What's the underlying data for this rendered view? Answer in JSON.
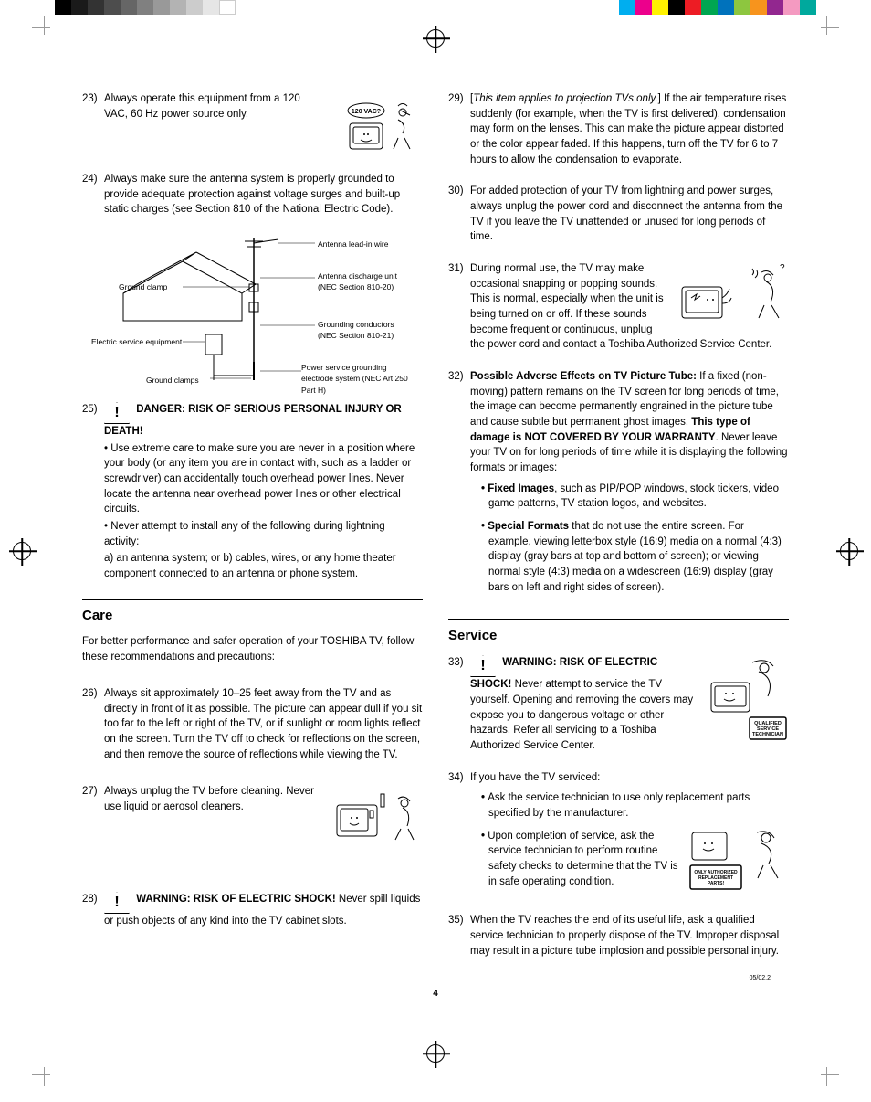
{
  "color_bar": {
    "left_segments": [
      "#000000",
      "#1a1a1a",
      "#333333",
      "#4d4d4d",
      "#666666",
      "#808080",
      "#999999",
      "#b3b3b3",
      "#cccccc",
      "#e6e6e6",
      "#ffffff"
    ],
    "right_segments": [
      "#00aeef",
      "#ec008c",
      "#fff200",
      "#000000",
      "#ed1c24",
      "#00a651",
      "#0072bc",
      "#8dc63f",
      "#f7941d",
      "#92278f",
      "#f49ac1",
      "#00a99d"
    ]
  },
  "page_number": "4",
  "revision": "05/02.2",
  "items": {
    "i23": {
      "num": "23)",
      "text": "Always operate this equipment from a 120 VAC, 60 Hz power source only.",
      "img_label": "120 VAC?"
    },
    "i24": {
      "num": "24)",
      "text": "Always make sure the antenna system is properly grounded to provide adequate protection against voltage surges and built-up static charges (see Section 810 of the National Electric Code).",
      "labels": {
        "ground_clamp": "Ground clamp",
        "electric_service": "Electric service equipment",
        "ground_clamps": "Ground clamps",
        "antenna_lead": "Antenna lead-in wire",
        "discharge": "Antenna discharge unit (NEC Section 810-20)",
        "conductors": "Grounding conductors (NEC Section 810-21)",
        "power_ground": "Power service grounding electrode system (NEC Art 250 Part H)"
      }
    },
    "i25": {
      "num": "25)",
      "heading": "DANGER: RISK OF SERIOUS PERSONAL INJURY OR DEATH!",
      "p1": "• Use extreme care to make sure you are never in a position where your body (or any item you are in contact with, such as a ladder or screwdriver) can accidentally touch overhead power lines. Never locate the antenna near overhead power lines or other electrical circuits.",
      "p2": "• Never attempt to install any of the following during lightning activity:",
      "p3": "a) an antenna system; or b) cables, wires, or any home theater component connected to an antenna or phone system."
    },
    "care": {
      "title": "Care",
      "sub": "For better performance and safer operation of your TOSHIBA TV, follow these recommendations and precautions:"
    },
    "i26": {
      "num": "26)",
      "text": "Always sit approximately 10–25 feet away from the TV and as directly in front of it as possible. The picture can appear dull if you sit too far to the left or right of the TV, or if sunlight or room lights reflect on the screen. Turn the TV off to check for reflections on the screen, and then remove the source of reflections while viewing the TV."
    },
    "i27": {
      "num": "27)",
      "text": "Always unplug the TV before cleaning. Never use liquid or aerosol cleaners."
    },
    "i28": {
      "num": "28)",
      "heading": "WARNING: RISK OF ELECTRIC SHOCK!",
      "text": " Never spill liquids or push objects of any kind into the TV cabinet slots."
    },
    "i29": {
      "num": "29)",
      "lead": "[",
      "italic": "This item applies to projection TVs only.",
      "close": "] ",
      "text": "If the air temperature rises suddenly (for example, when the TV is first delivered), condensation may form on the lenses. This can make the picture appear distorted or the color appear faded. If this happens, turn off the TV for 6 to 7 hours to allow the condensation to evaporate."
    },
    "i30": {
      "num": "30)",
      "text": "For added protection of your TV from lightning and power surges, always unplug the power cord and disconnect the antenna from the TV if you leave the TV unattended or unused for long periods of time."
    },
    "i31": {
      "num": "31)",
      "text": "During normal use, the TV may make occasional snapping or popping sounds. This is normal, especially when the unit is being turned on or off. If these sounds become frequent or continuous, unplug the power cord and contact a Toshiba Authorized Service Center."
    },
    "i32": {
      "num": "32)",
      "heading": "Possible Adverse Effects on TV Picture Tube:",
      "text": " If a fixed (non-moving) pattern remains on the TV screen for long periods of time, the image can become permanently engrained in the picture tube and cause subtle but permanent ghost images. ",
      "bold2": "This type of damage is NOT COVERED BY YOUR WARRANTY",
      "text2": ". Never leave your TV on for long periods of time while it is displaying the following formats or images:",
      "b1_bold": "Fixed Images",
      "b1": ", such as PIP/POP windows, stock tickers, video game patterns, TV station logos, and websites.",
      "b2_bold": "Special Formats",
      "b2": " that do not use the entire screen. For example, viewing letterbox style (16:9) media on a normal (4:3) display (gray bars at top and bottom of screen); or viewing normal style (4:3) media on a widescreen (16:9) display (gray bars on left and right sides of screen)."
    },
    "service": {
      "title": "Service"
    },
    "i33": {
      "num": "33)",
      "heading": "WARNING: RISK OF ELECTRIC SHOCK!",
      "text": " Never attempt to service the TV yourself. Opening and removing the covers may expose you to dangerous voltage or other hazards. Refer all servicing to a Toshiba Authorized Service Center.",
      "img_label": "QUALIFIED SERVICE TECHNICIAN"
    },
    "i34": {
      "num": "34)",
      "text": "If you have the TV serviced:",
      "b1": "Ask the service technician to use only replacement parts specified by the manufacturer.",
      "b2": "Upon completion of service, ask the service technician to perform routine safety checks to determine that the TV is in safe operating condition.",
      "img_label": "ONLY AUTHORIZED REPLACEMENT PARTS!"
    },
    "i35": {
      "num": "35)",
      "text": "When the TV reaches the end of its useful life, ask a qualified service technician to properly dispose of the TV. Improper disposal may result in a picture tube implosion and possible personal injury."
    }
  }
}
